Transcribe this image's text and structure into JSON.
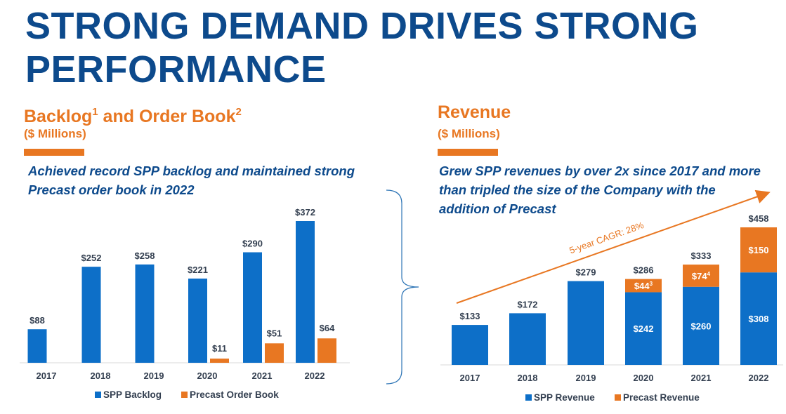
{
  "header": {
    "title": "STRONG DEMAND DRIVES STRONG PERFORMANCE"
  },
  "colors": {
    "blue": "#0d6fc8",
    "orange": "#e87722",
    "title": "#0d4a8c"
  },
  "left": {
    "heading_a": "Backlog",
    "sup_a": "1",
    "heading_b": " and Order Book",
    "sup_b": "2",
    "units": "($ Millions)",
    "description": "Achieved record SPP backlog and maintained strong Precast order book in 2022"
  },
  "right": {
    "heading": "Revenue",
    "units": "($ Millions)",
    "description": "Grew SPP revenues by over 2x since 2017 and more than tripled the size of the Company with the addition of Precast",
    "cagr_label": "5-year CAGR: 28%"
  },
  "chart_data": [
    {
      "type": "bar",
      "title": "Backlog1 and Order Book2",
      "categories": [
        "2017",
        "2018",
        "2019",
        "2020",
        "2021",
        "2022"
      ],
      "series": [
        {
          "name": "SPP Backlog",
          "values": [
            88,
            252,
            258,
            221,
            290,
            372
          ],
          "labels": [
            "$88",
            "$252",
            "$258",
            "$221",
            "$290",
            "$372"
          ]
        },
        {
          "name": "Precast Order Book",
          "values": [
            null,
            null,
            null,
            11,
            51,
            64
          ],
          "labels": [
            null,
            null,
            null,
            "$11",
            "$51",
            "$64"
          ]
        }
      ],
      "legend": "bottom",
      "grid": false
    },
    {
      "type": "bar",
      "stacked": true,
      "title": "Revenue",
      "categories": [
        "2017",
        "2018",
        "2019",
        "2020",
        "2021",
        "2022"
      ],
      "series": [
        {
          "name": "SPP Revenue",
          "values": [
            133,
            172,
            279,
            242,
            260,
            308
          ],
          "labels": [
            null,
            null,
            null,
            "$242",
            "$260",
            "$308"
          ]
        },
        {
          "name": "Precast Revenue",
          "values": [
            0,
            0,
            0,
            44,
            74,
            150
          ],
          "labels": [
            null,
            null,
            null,
            "$44",
            "$74",
            "$150"
          ],
          "label_superscripts": [
            null,
            null,
            null,
            "3",
            "4",
            null
          ]
        }
      ],
      "totals": [
        "$133",
        "$172",
        "$279",
        "$286",
        "$333",
        "$458"
      ],
      "annotation": "5-year CAGR: 28%",
      "legend": "bottom",
      "grid": false
    }
  ]
}
